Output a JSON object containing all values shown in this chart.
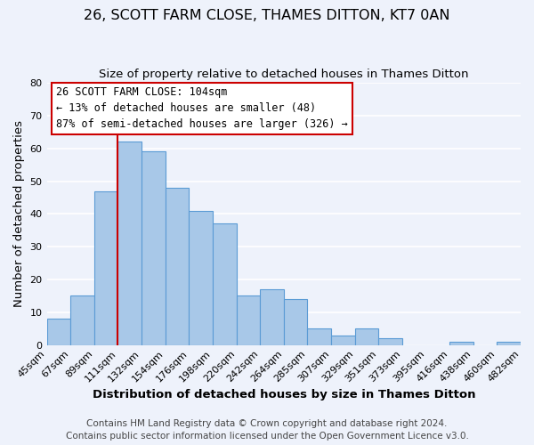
{
  "title": "26, SCOTT FARM CLOSE, THAMES DITTON, KT7 0AN",
  "subtitle": "Size of property relative to detached houses in Thames Ditton",
  "xlabel": "Distribution of detached houses by size in Thames Ditton",
  "ylabel": "Number of detached properties",
  "bins": [
    "45sqm",
    "67sqm",
    "89sqm",
    "111sqm",
    "132sqm",
    "154sqm",
    "176sqm",
    "198sqm",
    "220sqm",
    "242sqm",
    "264sqm",
    "285sqm",
    "307sqm",
    "329sqm",
    "351sqm",
    "373sqm",
    "395sqm",
    "416sqm",
    "438sqm",
    "460sqm",
    "482sqm"
  ],
  "values": [
    8,
    15,
    47,
    62,
    59,
    48,
    41,
    37,
    15,
    17,
    14,
    5,
    3,
    5,
    2,
    0,
    0,
    1,
    0,
    1
  ],
  "bar_color": "#a8c8e8",
  "bar_edge_color": "#5b9bd5",
  "vline_color": "#cc0000",
  "ylim": [
    0,
    80
  ],
  "yticks": [
    0,
    10,
    20,
    30,
    40,
    50,
    60,
    70,
    80
  ],
  "annotation_title": "26 SCOTT FARM CLOSE: 104sqm",
  "annotation_line1": "← 13% of detached houses are smaller (48)",
  "annotation_line2": "87% of semi-detached houses are larger (326) →",
  "annotation_box_color": "#ffffff",
  "annotation_box_edge": "#cc0000",
  "footer1": "Contains HM Land Registry data © Crown copyright and database right 2024.",
  "footer2": "Contains public sector information licensed under the Open Government Licence v3.0.",
  "background_color": "#eef2fb",
  "grid_color": "#ffffff",
  "title_fontsize": 11.5,
  "subtitle_fontsize": 9.5,
  "axis_label_fontsize": 9.5,
  "tick_fontsize": 8,
  "annotation_fontsize": 8.5,
  "footer_fontsize": 7.5
}
